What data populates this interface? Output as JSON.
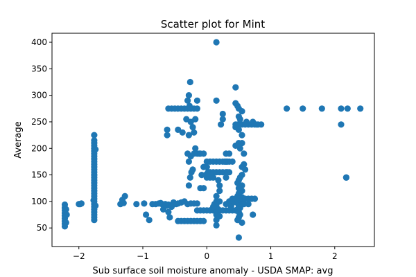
{
  "chart_data": {
    "type": "scatter",
    "title": "Scatter plot for Mint",
    "xlabel": "Sub surface soil moisture anomaly - USDA SMAP: avg",
    "ylabel": "Average",
    "xlim": [
      -2.42,
      2.62
    ],
    "ylim": [
      15,
      417
    ],
    "xticks": [
      -2,
      -1,
      0,
      1,
      2
    ],
    "yticks": [
      50,
      100,
      150,
      200,
      250,
      300,
      350,
      400
    ],
    "grid": false,
    "legend": "none",
    "point_color": "#1f77b4",
    "points": [
      [
        -2.22,
        53
      ],
      [
        -2.22,
        58
      ],
      [
        -2.22,
        63
      ],
      [
        -2.22,
        68
      ],
      [
        -2.22,
        73
      ],
      [
        -2.22,
        78
      ],
      [
        -2.22,
        83
      ],
      [
        -2.22,
        88
      ],
      [
        -2.22,
        94
      ],
      [
        -2.2,
        60
      ],
      [
        -2.2,
        85
      ],
      [
        -2.19,
        75
      ],
      [
        -1.98,
        95
      ],
      [
        -2.0,
        95
      ],
      [
        -1.96,
        96
      ],
      [
        -1.76,
        65
      ],
      [
        -1.76,
        70
      ],
      [
        -1.76,
        75
      ],
      [
        -1.76,
        80
      ],
      [
        -1.76,
        85
      ],
      [
        -1.76,
        90
      ],
      [
        -1.76,
        95
      ],
      [
        -1.76,
        100
      ],
      [
        -1.76,
        105
      ],
      [
        -1.76,
        110
      ],
      [
        -1.76,
        115
      ],
      [
        -1.76,
        120
      ],
      [
        -1.76,
        125
      ],
      [
        -1.76,
        130
      ],
      [
        -1.76,
        135
      ],
      [
        -1.76,
        140
      ],
      [
        -1.76,
        145
      ],
      [
        -1.76,
        150
      ],
      [
        -1.76,
        155
      ],
      [
        -1.76,
        160
      ],
      [
        -1.76,
        165
      ],
      [
        -1.76,
        170
      ],
      [
        -1.76,
        175
      ],
      [
        -1.76,
        180
      ],
      [
        -1.76,
        185
      ],
      [
        -1.76,
        190
      ],
      [
        -1.76,
        195
      ],
      [
        -1.76,
        200
      ],
      [
        -1.76,
        205
      ],
      [
        -1.76,
        210
      ],
      [
        -1.76,
        215
      ],
      [
        -1.76,
        225
      ],
      [
        -1.74,
        92
      ],
      [
        -1.74,
        198
      ],
      [
        -1.77,
        102
      ],
      [
        -1.35,
        95
      ],
      [
        -1.3,
        97
      ],
      [
        -1.28,
        110
      ],
      [
        -1.32,
        103
      ],
      [
        -1.1,
        95
      ],
      [
        -0.98,
        96
      ],
      [
        -0.95,
        75
      ],
      [
        -0.9,
        65
      ],
      [
        -0.85,
        95
      ],
      [
        -0.8,
        95
      ],
      [
        -0.75,
        96
      ],
      [
        -0.72,
        97
      ],
      [
        -0.7,
        95
      ],
      [
        -0.68,
        85
      ],
      [
        -0.65,
        95
      ],
      [
        -0.62,
        92
      ],
      [
        -0.6,
        94
      ],
      [
        -0.55,
        92
      ],
      [
        -0.52,
        98
      ],
      [
        -0.48,
        95
      ],
      [
        -0.6,
        80
      ],
      [
        -0.58,
        70
      ],
      [
        -0.55,
        90
      ],
      [
        -0.62,
        235
      ],
      [
        -0.62,
        225
      ],
      [
        -0.55,
        275
      ],
      [
        -0.6,
        275
      ],
      [
        -0.5,
        275
      ],
      [
        -0.45,
        275
      ],
      [
        -0.4,
        275
      ],
      [
        -0.35,
        275
      ],
      [
        -0.3,
        275
      ],
      [
        -0.25,
        275
      ],
      [
        -0.2,
        275
      ],
      [
        -0.15,
        275
      ],
      [
        -0.45,
        235
      ],
      [
        -0.38,
        230
      ],
      [
        -0.32,
        255
      ],
      [
        -0.28,
        225
      ],
      [
        -0.25,
        250
      ],
      [
        -0.22,
        240
      ],
      [
        -0.2,
        230
      ],
      [
        -0.18,
        255
      ],
      [
        -0.27,
        280
      ],
      [
        -0.15,
        290
      ],
      [
        -0.3,
        290
      ],
      [
        -0.3,
        95
      ],
      [
        -0.35,
        100
      ],
      [
        -0.25,
        96
      ],
      [
        -0.2,
        96
      ],
      [
        -0.15,
        96
      ],
      [
        -0.4,
        98
      ],
      [
        -0.45,
        96
      ],
      [
        -0.28,
        130
      ],
      [
        -0.26,
        145
      ],
      [
        -0.24,
        155
      ],
      [
        -0.22,
        160
      ],
      [
        -0.25,
        185
      ],
      [
        -0.28,
        175
      ],
      [
        -0.2,
        190
      ],
      [
        -0.18,
        200
      ],
      [
        -0.15,
        190
      ],
      [
        -0.12,
        190
      ],
      [
        -0.1,
        190
      ],
      [
        -0.05,
        190
      ],
      [
        -0.3,
        190
      ],
      [
        -0.45,
        63
      ],
      [
        -0.4,
        63
      ],
      [
        -0.35,
        63
      ],
      [
        -0.3,
        63
      ],
      [
        -0.25,
        63
      ],
      [
        -0.2,
        63
      ],
      [
        -0.15,
        63
      ],
      [
        -0.1,
        63
      ],
      [
        -0.05,
        63
      ],
      [
        -0.26,
        325
      ],
      [
        -0.28,
        300
      ],
      [
        -0.1,
        125
      ],
      [
        -0.05,
        125
      ],
      [
        -0.15,
        83
      ],
      [
        -0.1,
        83
      ],
      [
        -0.05,
        83
      ],
      [
        0.0,
        83
      ],
      [
        0.05,
        83
      ],
      [
        0.1,
        83
      ],
      [
        0.15,
        83
      ],
      [
        0.2,
        83
      ],
      [
        0.25,
        83
      ],
      [
        0.3,
        83
      ],
      [
        0.35,
        83
      ],
      [
        0.4,
        83
      ],
      [
        0.45,
        83
      ],
      [
        0.0,
        175
      ],
      [
        0.05,
        175
      ],
      [
        0.1,
        175
      ],
      [
        0.15,
        175
      ],
      [
        0.2,
        175
      ],
      [
        0.25,
        175
      ],
      [
        0.3,
        175
      ],
      [
        0.35,
        175
      ],
      [
        0.4,
        175
      ],
      [
        0.0,
        165
      ],
      [
        0.02,
        155
      ],
      [
        0.05,
        155
      ],
      [
        0.1,
        155
      ],
      [
        0.15,
        155
      ],
      [
        0.2,
        155
      ],
      [
        0.25,
        155
      ],
      [
        0.3,
        155
      ],
      [
        0.35,
        155
      ],
      [
        -0.05,
        165
      ],
      [
        -0.02,
        150
      ],
      [
        0.0,
        145
      ],
      [
        0.05,
        145
      ],
      [
        0.1,
        145
      ],
      [
        0.02,
        150
      ],
      [
        -0.08,
        150
      ],
      [
        0.18,
        140
      ],
      [
        0.2,
        130
      ],
      [
        0.2,
        120
      ],
      [
        0.15,
        110
      ],
      [
        0.15,
        100
      ],
      [
        0.15,
        95
      ],
      [
        0.15,
        90
      ],
      [
        0.15,
        80
      ],
      [
        0.15,
        75
      ],
      [
        0.15,
        65
      ],
      [
        0.15,
        55
      ],
      [
        0.12,
        95
      ],
      [
        0.2,
        100
      ],
      [
        0.18,
        85
      ],
      [
        0.05,
        83
      ],
      [
        0.1,
        90
      ],
      [
        0.2,
        72
      ],
      [
        0.15,
        400
      ],
      [
        0.15,
        290
      ],
      [
        0.25,
        265
      ],
      [
        0.25,
        255
      ],
      [
        0.22,
        245
      ],
      [
        0.32,
        175
      ],
      [
        0.3,
        190
      ],
      [
        0.35,
        190
      ],
      [
        0.28,
        175
      ],
      [
        0.32,
        155
      ],
      [
        0.3,
        145
      ],
      [
        0.45,
        315
      ],
      [
        0.45,
        285
      ],
      [
        0.48,
        280
      ],
      [
        0.5,
        275
      ],
      [
        0.55,
        270
      ],
      [
        0.5,
        260
      ],
      [
        0.52,
        255
      ],
      [
        0.48,
        245
      ],
      [
        0.45,
        240
      ],
      [
        0.5,
        235
      ],
      [
        0.55,
        225
      ],
      [
        0.5,
        210
      ],
      [
        0.55,
        210
      ],
      [
        0.52,
        200
      ],
      [
        0.45,
        205
      ],
      [
        0.58,
        190
      ],
      [
        0.58,
        170
      ],
      [
        0.55,
        165
      ],
      [
        0.6,
        160
      ],
      [
        0.55,
        150
      ],
      [
        0.52,
        145
      ],
      [
        0.5,
        140
      ],
      [
        0.48,
        135
      ],
      [
        0.55,
        130
      ],
      [
        0.5,
        125
      ],
      [
        0.55,
        120
      ],
      [
        0.5,
        115
      ],
      [
        0.48,
        110
      ],
      [
        0.55,
        108
      ],
      [
        0.5,
        105
      ],
      [
        0.52,
        100
      ],
      [
        0.48,
        97
      ],
      [
        0.55,
        95
      ],
      [
        0.5,
        92
      ],
      [
        0.52,
        88
      ],
      [
        0.48,
        85
      ],
      [
        0.5,
        80
      ],
      [
        0.52,
        75
      ],
      [
        0.5,
        70
      ],
      [
        0.48,
        65
      ],
      [
        0.5,
        32
      ],
      [
        0.45,
        245
      ],
      [
        0.55,
        245
      ],
      [
        0.6,
        245
      ],
      [
        0.65,
        245
      ],
      [
        0.7,
        245
      ],
      [
        0.75,
        245
      ],
      [
        0.8,
        245
      ],
      [
        0.85,
        245
      ],
      [
        0.62,
        250
      ],
      [
        0.72,
        250
      ],
      [
        0.78,
        245
      ],
      [
        0.6,
        105
      ],
      [
        0.65,
        105
      ],
      [
        0.7,
        105
      ],
      [
        0.75,
        105
      ],
      [
        0.58,
        95
      ],
      [
        0.65,
        95
      ],
      [
        0.72,
        75
      ],
      [
        0.55,
        60
      ],
      [
        0.4,
        105
      ],
      [
        0.45,
        105
      ],
      [
        0.4,
        97
      ],
      [
        0.35,
        100
      ],
      [
        0.3,
        95
      ],
      [
        0.38,
        90
      ],
      [
        1.25,
        275
      ],
      [
        1.5,
        275
      ],
      [
        1.8,
        275
      ],
      [
        2.1,
        275
      ],
      [
        2.2,
        275
      ],
      [
        2.4,
        275
      ],
      [
        2.1,
        245
      ],
      [
        2.18,
        145
      ],
      [
        2.18,
        145
      ]
    ]
  }
}
